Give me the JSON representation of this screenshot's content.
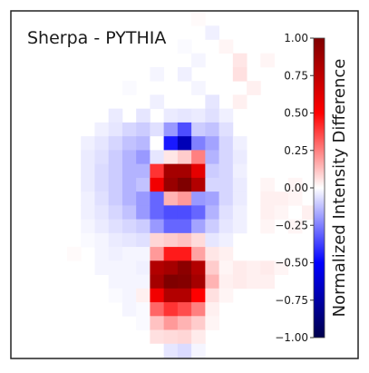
{
  "chart_data": {
    "type": "heatmap",
    "title": "Sherpa - PYTHIA",
    "colorbar": {
      "label": "Normalized Intensity Difference",
      "range": [
        -1.0,
        1.0
      ],
      "ticks": [
        "1.00",
        "0.75",
        "0.50",
        "0.25",
        "0.00",
        "−0.25",
        "−0.50",
        "−0.75",
        "−1.00"
      ],
      "colormap": "seismic",
      "colors": {
        "negative_end": "#00004c",
        "negative": "#0000ff",
        "zero": "#ffffff",
        "positive": "#ff0000",
        "positive_end": "#7f0000"
      }
    },
    "grid": "off",
    "grid_size": [
      25,
      25
    ],
    "cells": [
      [
        0,
        13,
        0.01
      ],
      [
        1,
        14,
        -0.03
      ],
      [
        2,
        12,
        -0.01
      ],
      [
        2,
        15,
        0.02
      ],
      [
        3,
        13,
        -0.02
      ],
      [
        3,
        16,
        0.05
      ],
      [
        3,
        18,
        0.02
      ],
      [
        4,
        10,
        -0.02
      ],
      [
        4,
        12,
        -0.03
      ],
      [
        4,
        16,
        0.06
      ],
      [
        5,
        8,
        -0.01
      ],
      [
        5,
        13,
        -0.02
      ],
      [
        5,
        17,
        0.03
      ],
      [
        6,
        10,
        -0.03
      ],
      [
        6,
        14,
        -0.05
      ],
      [
        6,
        16,
        0.03
      ],
      [
        7,
        7,
        -0.04
      ],
      [
        7,
        9,
        -0.05
      ],
      [
        7,
        11,
        -0.04
      ],
      [
        7,
        12,
        -0.05
      ],
      [
        7,
        13,
        -0.04
      ],
      [
        7,
        14,
        -0.06
      ],
      [
        7,
        15,
        -0.03
      ],
      [
        8,
        6,
        -0.03
      ],
      [
        8,
        7,
        -0.05
      ],
      [
        8,
        8,
        -0.08
      ],
      [
        8,
        9,
        -0.1
      ],
      [
        8,
        10,
        -0.06
      ],
      [
        8,
        11,
        -0.2
      ],
      [
        8,
        12,
        -0.35
      ],
      [
        8,
        13,
        -0.1
      ],
      [
        8,
        14,
        -0.12
      ],
      [
        8,
        15,
        -0.06
      ],
      [
        9,
        5,
        -0.03
      ],
      [
        9,
        6,
        -0.05
      ],
      [
        9,
        7,
        -0.08
      ],
      [
        9,
        8,
        -0.12
      ],
      [
        9,
        9,
        -0.14
      ],
      [
        9,
        10,
        0.0
      ],
      [
        9,
        11,
        -0.45
      ],
      [
        9,
        12,
        -0.7
      ],
      [
        9,
        13,
        -0.25
      ],
      [
        9,
        14,
        -0.18
      ],
      [
        9,
        15,
        -0.08
      ],
      [
        9,
        16,
        -0.03
      ],
      [
        10,
        5,
        -0.04
      ],
      [
        10,
        6,
        -0.06
      ],
      [
        10,
        7,
        -0.1
      ],
      [
        10,
        8,
        -0.15
      ],
      [
        10,
        9,
        -0.2
      ],
      [
        10,
        10,
        -0.05
      ],
      [
        10,
        11,
        0.05
      ],
      [
        10,
        12,
        0.1
      ],
      [
        10,
        13,
        0.25
      ],
      [
        10,
        14,
        -0.15
      ],
      [
        10,
        15,
        -0.08
      ],
      [
        10,
        16,
        -0.04
      ],
      [
        11,
        5,
        -0.04
      ],
      [
        11,
        6,
        -0.07
      ],
      [
        11,
        7,
        -0.1
      ],
      [
        11,
        8,
        -0.15
      ],
      [
        11,
        9,
        -0.15
      ],
      [
        11,
        10,
        0.4
      ],
      [
        11,
        11,
        0.85
      ],
      [
        11,
        12,
        0.85
      ],
      [
        11,
        13,
        0.6
      ],
      [
        11,
        14,
        -0.1
      ],
      [
        11,
        15,
        -0.08
      ],
      [
        11,
        16,
        -0.03
      ],
      [
        12,
        5,
        -0.04
      ],
      [
        12,
        6,
        -0.07
      ],
      [
        12,
        7,
        -0.1
      ],
      [
        12,
        8,
        -0.15
      ],
      [
        12,
        9,
        -0.12
      ],
      [
        12,
        10,
        0.55
      ],
      [
        12,
        11,
        0.9
      ],
      [
        12,
        12,
        1.0
      ],
      [
        12,
        13,
        0.8
      ],
      [
        12,
        14,
        -0.08
      ],
      [
        12,
        15,
        -0.08
      ],
      [
        12,
        16,
        -0.04
      ],
      [
        12,
        18,
        0.02
      ],
      [
        12,
        20,
        0.02
      ],
      [
        13,
        5,
        -0.03
      ],
      [
        13,
        6,
        -0.06
      ],
      [
        13,
        7,
        -0.1
      ],
      [
        13,
        8,
        -0.15
      ],
      [
        13,
        9,
        -0.2
      ],
      [
        13,
        10,
        -0.3
      ],
      [
        13,
        11,
        0.15
      ],
      [
        13,
        12,
        0.2
      ],
      [
        13,
        13,
        -0.2
      ],
      [
        13,
        14,
        -0.18
      ],
      [
        13,
        15,
        -0.08
      ],
      [
        13,
        16,
        -0.04
      ],
      [
        13,
        18,
        0.03
      ],
      [
        13,
        19,
        0.03
      ],
      [
        13,
        20,
        0.02
      ],
      [
        14,
        5,
        -0.03
      ],
      [
        14,
        6,
        -0.05
      ],
      [
        14,
        7,
        -0.08
      ],
      [
        14,
        8,
        -0.12
      ],
      [
        14,
        9,
        -0.2
      ],
      [
        14,
        10,
        -0.3
      ],
      [
        14,
        11,
        -0.35
      ],
      [
        14,
        12,
        -0.35
      ],
      [
        14,
        13,
        -0.3
      ],
      [
        14,
        14,
        -0.15
      ],
      [
        14,
        15,
        -0.06
      ],
      [
        14,
        16,
        -0.03
      ],
      [
        14,
        18,
        0.03
      ],
      [
        14,
        19,
        0.02
      ],
      [
        14,
        21,
        0.03
      ],
      [
        15,
        5,
        -0.02
      ],
      [
        15,
        6,
        -0.04
      ],
      [
        15,
        7,
        -0.06
      ],
      [
        15,
        8,
        -0.08
      ],
      [
        15,
        9,
        -0.1
      ],
      [
        15,
        10,
        -0.2
      ],
      [
        15,
        11,
        -0.3
      ],
      [
        15,
        12,
        -0.3
      ],
      [
        15,
        13,
        -0.18
      ],
      [
        15,
        14,
        -0.1
      ],
      [
        15,
        15,
        -0.05
      ],
      [
        15,
        16,
        -0.03
      ],
      [
        15,
        18,
        0.02
      ],
      [
        15,
        20,
        0.02
      ],
      [
        16,
        5,
        -0.01
      ],
      [
        16,
        6,
        -0.02
      ],
      [
        16,
        7,
        -0.04
      ],
      [
        16,
        8,
        -0.05
      ],
      [
        16,
        9,
        -0.06
      ],
      [
        16,
        10,
        0.08
      ],
      [
        16,
        11,
        0.1
      ],
      [
        16,
        12,
        0.12
      ],
      [
        16,
        13,
        0.07
      ],
      [
        16,
        14,
        -0.05
      ],
      [
        16,
        15,
        -0.03
      ],
      [
        17,
        4,
        0.01
      ],
      [
        17,
        6,
        -0.02
      ],
      [
        17,
        7,
        -0.03
      ],
      [
        17,
        8,
        -0.02
      ],
      [
        17,
        9,
        -0.02
      ],
      [
        17,
        10,
        0.2
      ],
      [
        17,
        11,
        0.45
      ],
      [
        17,
        12,
        0.45
      ],
      [
        17,
        13,
        0.18
      ],
      [
        17,
        14,
        0.05
      ],
      [
        17,
        15,
        0.03
      ],
      [
        18,
        6,
        -0.02
      ],
      [
        18,
        7,
        -0.02
      ],
      [
        18,
        8,
        -0.02
      ],
      [
        18,
        9,
        -0.03
      ],
      [
        18,
        10,
        0.8
      ],
      [
        18,
        11,
        0.85
      ],
      [
        18,
        12,
        0.95
      ],
      [
        18,
        13,
        0.8
      ],
      [
        18,
        14,
        0.1
      ],
      [
        18,
        15,
        0.02
      ],
      [
        18,
        16,
        0.04
      ],
      [
        18,
        17,
        0.03
      ],
      [
        18,
        18,
        0.04
      ],
      [
        18,
        19,
        0.02
      ],
      [
        19,
        7,
        -0.02
      ],
      [
        19,
        8,
        -0.02
      ],
      [
        19,
        9,
        -0.02
      ],
      [
        19,
        10,
        0.85
      ],
      [
        19,
        11,
        1.0
      ],
      [
        19,
        12,
        0.98
      ],
      [
        19,
        13,
        0.85
      ],
      [
        19,
        14,
        0.15
      ],
      [
        19,
        15,
        0.03
      ],
      [
        19,
        16,
        0.04
      ],
      [
        19,
        17,
        0.03
      ],
      [
        19,
        18,
        0.03
      ],
      [
        20,
        7,
        -0.01
      ],
      [
        20,
        8,
        -0.02
      ],
      [
        20,
        9,
        0.03
      ],
      [
        20,
        10,
        0.55
      ],
      [
        20,
        11,
        0.8
      ],
      [
        20,
        12,
        0.8
      ],
      [
        20,
        13,
        0.5
      ],
      [
        20,
        14,
        0.06
      ],
      [
        20,
        15,
        0.02
      ],
      [
        21,
        8,
        -0.02
      ],
      [
        21,
        9,
        -0.01
      ],
      [
        21,
        10,
        0.3
      ],
      [
        21,
        11,
        0.4
      ],
      [
        21,
        12,
        0.35
      ],
      [
        21,
        13,
        0.25
      ],
      [
        21,
        14,
        0.03
      ],
      [
        22,
        9,
        -0.01
      ],
      [
        22,
        10,
        0.12
      ],
      [
        22,
        11,
        0.2
      ],
      [
        22,
        12,
        0.15
      ],
      [
        22,
        13,
        0.1
      ],
      [
        22,
        14,
        0.02
      ],
      [
        23,
        10,
        0.06
      ],
      [
        23,
        11,
        0.07
      ],
      [
        23,
        12,
        0.08
      ],
      [
        23,
        13,
        0.04
      ],
      [
        24,
        10,
        0.0
      ],
      [
        24,
        11,
        -0.05
      ],
      [
        24,
        12,
        -0.07
      ],
      [
        24,
        13,
        -0.02
      ]
    ]
  }
}
